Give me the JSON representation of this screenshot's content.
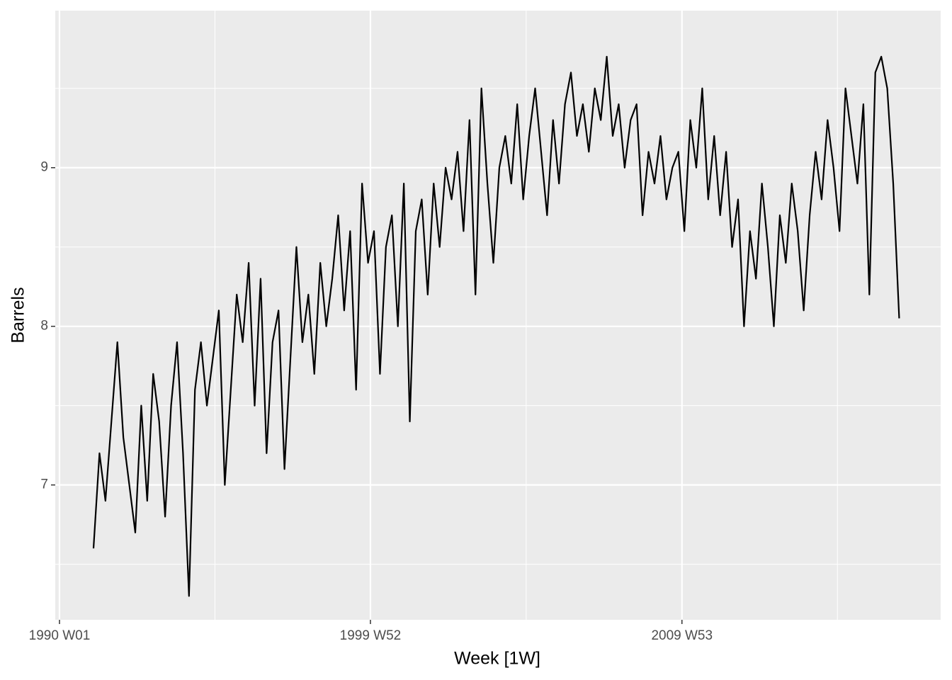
{
  "chart_data": {
    "type": "line",
    "x_label": "Week [1W]",
    "y_label": "Barrels",
    "x": [
      57,
      67,
      77,
      87,
      97,
      107,
      117,
      127,
      137,
      147,
      157,
      167,
      177,
      187,
      197,
      207,
      217,
      227,
      237,
      247,
      257,
      267,
      277,
      287,
      297,
      307,
      317,
      327,
      337,
      347,
      357,
      367,
      377,
      387,
      397,
      407,
      417,
      427,
      437,
      447,
      457,
      467,
      477,
      487,
      497,
      507,
      517,
      527,
      537,
      547,
      557,
      567,
      577,
      587,
      597,
      607,
      617,
      627,
      637,
      647,
      657,
      667,
      677,
      687,
      697,
      707,
      717,
      727,
      737,
      747,
      757,
      767,
      777,
      787,
      797,
      807,
      817,
      827,
      837,
      847,
      857,
      867,
      877,
      887,
      897,
      907,
      917,
      927,
      937,
      947,
      957,
      967,
      977,
      987,
      997,
      1007,
      1017,
      1027,
      1037,
      1047,
      1057,
      1067,
      1077,
      1087,
      1097,
      1107,
      1117,
      1127,
      1137,
      1147,
      1157,
      1167,
      1177,
      1187,
      1197,
      1207,
      1217,
      1227,
      1237,
      1247,
      1257,
      1267,
      1277,
      1287,
      1297,
      1307,
      1317,
      1327,
      1337,
      1347,
      1357,
      1367,
      1377,
      1387,
      1397,
      1407
    ],
    "series": [
      {
        "name": "Barrels",
        "color": "#000000",
        "values": [
          6.6,
          7.2,
          6.9,
          7.4,
          7.9,
          7.3,
          7.0,
          6.7,
          7.5,
          6.9,
          7.7,
          7.4,
          6.8,
          7.5,
          7.9,
          7.2,
          6.3,
          7.6,
          7.9,
          7.5,
          7.8,
          8.1,
          7.0,
          7.6,
          8.2,
          7.9,
          8.4,
          7.5,
          8.3,
          7.2,
          7.9,
          8.1,
          7.1,
          7.8,
          8.5,
          7.9,
          8.2,
          7.7,
          8.4,
          8.0,
          8.3,
          8.7,
          8.1,
          8.6,
          7.6,
          8.9,
          8.4,
          8.6,
          7.7,
          8.5,
          8.7,
          8.0,
          8.9,
          7.4,
          8.6,
          8.8,
          8.2,
          8.9,
          8.5,
          9.0,
          8.8,
          9.1,
          8.6,
          9.3,
          8.2,
          9.5,
          8.9,
          8.4,
          9.0,
          9.2,
          8.9,
          9.4,
          8.8,
          9.2,
          9.5,
          9.1,
          8.7,
          9.3,
          8.9,
          9.4,
          9.6,
          9.2,
          9.4,
          9.1,
          9.5,
          9.3,
          9.7,
          9.2,
          9.4,
          9.0,
          9.3,
          9.4,
          8.7,
          9.1,
          8.9,
          9.2,
          8.8,
          9.0,
          9.1,
          8.6,
          9.3,
          9.0,
          9.5,
          8.8,
          9.2,
          8.7,
          9.1,
          8.5,
          8.8,
          8.0,
          8.6,
          8.3,
          8.9,
          8.5,
          8.0,
          8.7,
          8.4,
          8.9,
          8.6,
          8.1,
          8.7,
          9.1,
          8.8,
          9.3,
          9.0,
          8.6,
          9.5,
          9.2,
          8.9,
          9.4,
          8.2,
          9.6,
          9.7,
          9.5,
          8.9,
          8.05
        ]
      }
    ],
    "xlim": [
      -7.1,
      1476.5
    ],
    "ylim": [
      6.15,
      9.99
    ],
    "xticks": [
      {
        "value": 0,
        "label": "1990 W01"
      },
      {
        "value": 521,
        "label": "1999 W52"
      },
      {
        "value": 1043,
        "label": "2009 W53"
      }
    ],
    "yticks": [
      7,
      8,
      9
    ],
    "grid": true
  }
}
